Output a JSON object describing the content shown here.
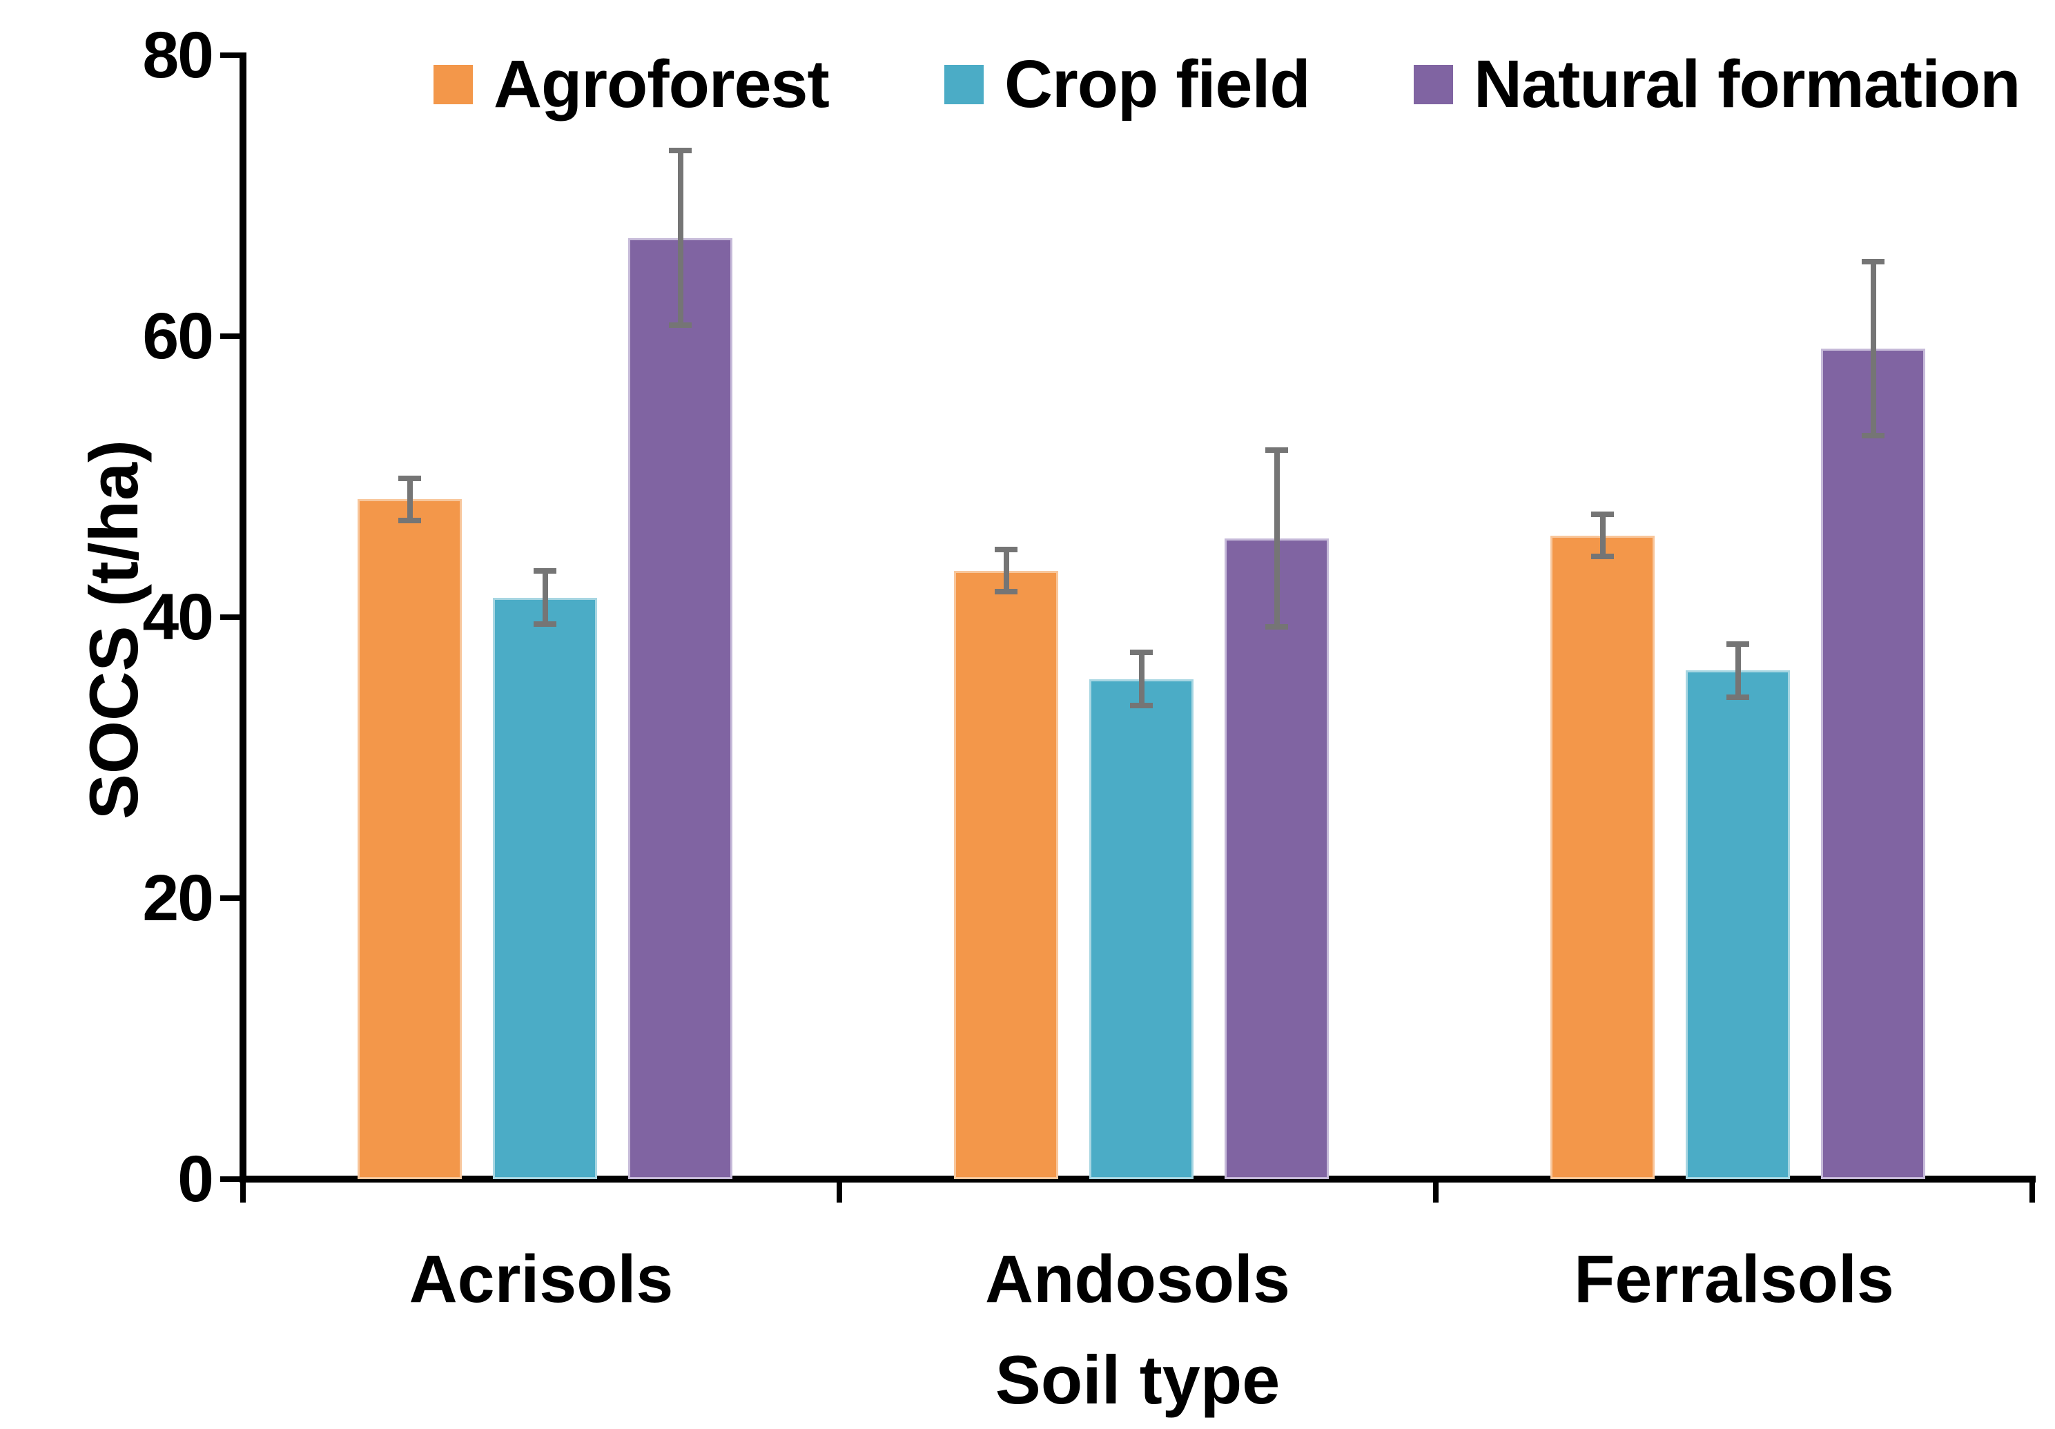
{
  "axes": {
    "x_title": "Soil type",
    "y_title": "SOCS (t/ha)"
  },
  "chart_data": {
    "type": "bar",
    "title": "",
    "categories": [
      "Acrisols",
      "Andosols",
      "Ferralsols"
    ],
    "series": [
      {
        "name": "Agroforest",
        "color": "#F3974A",
        "border_color": "#F8C69B",
        "values": [
          48.4,
          43.3,
          45.8
        ],
        "errors": [
          1.5,
          1.5,
          1.5
        ]
      },
      {
        "name": "Crop field",
        "color": "#4BACC6",
        "border_color": "#A7D6E2",
        "values": [
          41.4,
          35.6,
          36.2
        ],
        "errors": [
          1.9,
          1.9,
          1.9
        ]
      },
      {
        "name": "Natural formation",
        "color": "#8064A2",
        "border_color": "#C6BAD9",
        "values": [
          67.0,
          45.6,
          59.1
        ],
        "errors": [
          6.2,
          6.3,
          6.2
        ]
      }
    ],
    "xlabel": "Soil type",
    "ylabel": "SOCS (t/ha)",
    "ylim": [
      0,
      80
    ],
    "yticks": [
      0,
      20,
      40,
      60,
      80
    ],
    "error_bar_color": "#757575",
    "axis_color": "#000000",
    "background": "#FFFFFF",
    "legend_position": "top",
    "grid": false
  }
}
